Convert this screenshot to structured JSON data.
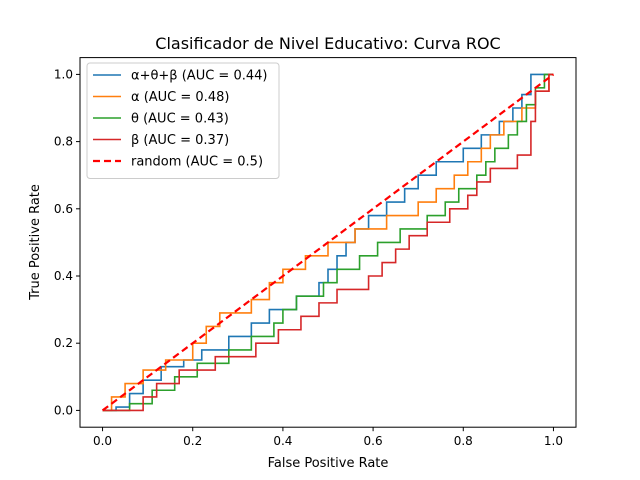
{
  "chart_data": {
    "type": "line",
    "title": "Clasificador de Nivel Educativo: Curva ROC",
    "xlabel": "False Positive Rate",
    "ylabel": "True Positive Rate",
    "xlim": [
      -0.05,
      1.05
    ],
    "ylim": [
      -0.05,
      1.05
    ],
    "xticks": [
      "0.0",
      "0.2",
      "0.4",
      "0.6",
      "0.8",
      "1.0"
    ],
    "yticks": [
      "0.0",
      "0.2",
      "0.4",
      "0.6",
      "0.8",
      "1.0"
    ],
    "grid": false,
    "legend_position": "top-left",
    "series": [
      {
        "name": "α+θ+β (AUC = 0.44)",
        "color": "#1f77b4",
        "dash": false,
        "points": [
          [
            0,
            0
          ],
          [
            0.03,
            0
          ],
          [
            0.03,
            0.01
          ],
          [
            0.06,
            0.01
          ],
          [
            0.06,
            0.05
          ],
          [
            0.09,
            0.05
          ],
          [
            0.09,
            0.09
          ],
          [
            0.13,
            0.09
          ],
          [
            0.13,
            0.13
          ],
          [
            0.18,
            0.13
          ],
          [
            0.18,
            0.15
          ],
          [
            0.22,
            0.15
          ],
          [
            0.22,
            0.18
          ],
          [
            0.28,
            0.18
          ],
          [
            0.28,
            0.22
          ],
          [
            0.33,
            0.22
          ],
          [
            0.33,
            0.26
          ],
          [
            0.37,
            0.26
          ],
          [
            0.37,
            0.3
          ],
          [
            0.43,
            0.3
          ],
          [
            0.43,
            0.34
          ],
          [
            0.48,
            0.34
          ],
          [
            0.48,
            0.38
          ],
          [
            0.5,
            0.38
          ],
          [
            0.5,
            0.42
          ],
          [
            0.52,
            0.42
          ],
          [
            0.52,
            0.46
          ],
          [
            0.54,
            0.46
          ],
          [
            0.54,
            0.5
          ],
          [
            0.56,
            0.5
          ],
          [
            0.56,
            0.54
          ],
          [
            0.59,
            0.54
          ],
          [
            0.59,
            0.58
          ],
          [
            0.63,
            0.58
          ],
          [
            0.63,
            0.62
          ],
          [
            0.67,
            0.62
          ],
          [
            0.67,
            0.66
          ],
          [
            0.7,
            0.66
          ],
          [
            0.7,
            0.7
          ],
          [
            0.74,
            0.7
          ],
          [
            0.74,
            0.74
          ],
          [
            0.8,
            0.74
          ],
          [
            0.8,
            0.78
          ],
          [
            0.84,
            0.78
          ],
          [
            0.84,
            0.82
          ],
          [
            0.88,
            0.82
          ],
          [
            0.88,
            0.86
          ],
          [
            0.91,
            0.86
          ],
          [
            0.91,
            0.9
          ],
          [
            0.93,
            0.9
          ],
          [
            0.93,
            0.94
          ],
          [
            0.95,
            0.94
          ],
          [
            0.95,
            1.0
          ],
          [
            1.0,
            1.0
          ]
        ]
      },
      {
        "name": "α (AUC = 0.48)",
        "color": "#ff7f0e",
        "dash": false,
        "points": [
          [
            0,
            0
          ],
          [
            0.02,
            0
          ],
          [
            0.02,
            0.04
          ],
          [
            0.05,
            0.04
          ],
          [
            0.05,
            0.08
          ],
          [
            0.09,
            0.08
          ],
          [
            0.09,
            0.12
          ],
          [
            0.14,
            0.12
          ],
          [
            0.14,
            0.15
          ],
          [
            0.2,
            0.15
          ],
          [
            0.2,
            0.2
          ],
          [
            0.23,
            0.2
          ],
          [
            0.23,
            0.25
          ],
          [
            0.26,
            0.25
          ],
          [
            0.26,
            0.29
          ],
          [
            0.33,
            0.29
          ],
          [
            0.33,
            0.33
          ],
          [
            0.37,
            0.33
          ],
          [
            0.37,
            0.38
          ],
          [
            0.4,
            0.38
          ],
          [
            0.4,
            0.42
          ],
          [
            0.45,
            0.42
          ],
          [
            0.45,
            0.46
          ],
          [
            0.5,
            0.46
          ],
          [
            0.5,
            0.5
          ],
          [
            0.56,
            0.5
          ],
          [
            0.56,
            0.54
          ],
          [
            0.63,
            0.54
          ],
          [
            0.63,
            0.58
          ],
          [
            0.7,
            0.58
          ],
          [
            0.7,
            0.62
          ],
          [
            0.74,
            0.62
          ],
          [
            0.74,
            0.66
          ],
          [
            0.78,
            0.66
          ],
          [
            0.78,
            0.7
          ],
          [
            0.81,
            0.7
          ],
          [
            0.81,
            0.74
          ],
          [
            0.84,
            0.74
          ],
          [
            0.84,
            0.78
          ],
          [
            0.86,
            0.78
          ],
          [
            0.86,
            0.82
          ],
          [
            0.89,
            0.82
          ],
          [
            0.89,
            0.86
          ],
          [
            0.93,
            0.86
          ],
          [
            0.93,
            0.9
          ],
          [
            0.96,
            0.9
          ],
          [
            0.96,
            0.95
          ],
          [
            0.99,
            0.95
          ],
          [
            0.99,
            1.0
          ],
          [
            1.0,
            1.0
          ]
        ]
      },
      {
        "name": "θ (AUC = 0.43)",
        "color": "#2ca02c",
        "dash": false,
        "points": [
          [
            0,
            0
          ],
          [
            0.06,
            0
          ],
          [
            0.06,
            0.02
          ],
          [
            0.11,
            0.02
          ],
          [
            0.11,
            0.06
          ],
          [
            0.16,
            0.06
          ],
          [
            0.16,
            0.1
          ],
          [
            0.21,
            0.1
          ],
          [
            0.21,
            0.14
          ],
          [
            0.28,
            0.14
          ],
          [
            0.28,
            0.18
          ],
          [
            0.33,
            0.18
          ],
          [
            0.33,
            0.22
          ],
          [
            0.38,
            0.22
          ],
          [
            0.38,
            0.26
          ],
          [
            0.4,
            0.26
          ],
          [
            0.4,
            0.3
          ],
          [
            0.43,
            0.3
          ],
          [
            0.43,
            0.34
          ],
          [
            0.49,
            0.34
          ],
          [
            0.49,
            0.38
          ],
          [
            0.52,
            0.38
          ],
          [
            0.52,
            0.42
          ],
          [
            0.57,
            0.42
          ],
          [
            0.57,
            0.46
          ],
          [
            0.61,
            0.46
          ],
          [
            0.61,
            0.5
          ],
          [
            0.66,
            0.5
          ],
          [
            0.66,
            0.54
          ],
          [
            0.72,
            0.54
          ],
          [
            0.72,
            0.58
          ],
          [
            0.76,
            0.58
          ],
          [
            0.76,
            0.62
          ],
          [
            0.79,
            0.62
          ],
          [
            0.79,
            0.66
          ],
          [
            0.83,
            0.66
          ],
          [
            0.83,
            0.7
          ],
          [
            0.85,
            0.7
          ],
          [
            0.85,
            0.74
          ],
          [
            0.87,
            0.74
          ],
          [
            0.87,
            0.78
          ],
          [
            0.9,
            0.78
          ],
          [
            0.9,
            0.82
          ],
          [
            0.92,
            0.82
          ],
          [
            0.92,
            0.86
          ],
          [
            0.94,
            0.86
          ],
          [
            0.94,
            0.91
          ],
          [
            0.96,
            0.91
          ],
          [
            0.96,
            0.96
          ],
          [
            0.98,
            0.96
          ],
          [
            0.98,
            1.0
          ],
          [
            1.0,
            1.0
          ]
        ]
      },
      {
        "name": "β (AUC = 0.37)",
        "color": "#d62728",
        "dash": false,
        "points": [
          [
            0,
            0
          ],
          [
            0.09,
            0
          ],
          [
            0.09,
            0.04
          ],
          [
            0.12,
            0.04
          ],
          [
            0.12,
            0.08
          ],
          [
            0.17,
            0.08
          ],
          [
            0.17,
            0.12
          ],
          [
            0.25,
            0.12
          ],
          [
            0.25,
            0.16
          ],
          [
            0.34,
            0.16
          ],
          [
            0.34,
            0.2
          ],
          [
            0.39,
            0.2
          ],
          [
            0.39,
            0.24
          ],
          [
            0.44,
            0.24
          ],
          [
            0.44,
            0.28
          ],
          [
            0.48,
            0.28
          ],
          [
            0.48,
            0.32
          ],
          [
            0.52,
            0.32
          ],
          [
            0.52,
            0.36
          ],
          [
            0.59,
            0.36
          ],
          [
            0.59,
            0.4
          ],
          [
            0.62,
            0.4
          ],
          [
            0.62,
            0.44
          ],
          [
            0.65,
            0.44
          ],
          [
            0.65,
            0.48
          ],
          [
            0.68,
            0.48
          ],
          [
            0.68,
            0.52
          ],
          [
            0.72,
            0.52
          ],
          [
            0.72,
            0.56
          ],
          [
            0.77,
            0.56
          ],
          [
            0.77,
            0.6
          ],
          [
            0.81,
            0.6
          ],
          [
            0.81,
            0.64
          ],
          [
            0.83,
            0.64
          ],
          [
            0.83,
            0.68
          ],
          [
            0.86,
            0.68
          ],
          [
            0.86,
            0.72
          ],
          [
            0.92,
            0.72
          ],
          [
            0.92,
            0.76
          ],
          [
            0.95,
            0.76
          ],
          [
            0.95,
            0.86
          ],
          [
            0.96,
            0.86
          ],
          [
            0.96,
            0.95
          ],
          [
            0.99,
            0.95
          ],
          [
            0.99,
            1.0
          ],
          [
            1.0,
            1.0
          ]
        ]
      },
      {
        "name": "random (AUC = 0.5)",
        "color": "#ff0000",
        "dash": true,
        "points": [
          [
            0,
            0
          ],
          [
            1,
            1
          ]
        ]
      }
    ]
  }
}
